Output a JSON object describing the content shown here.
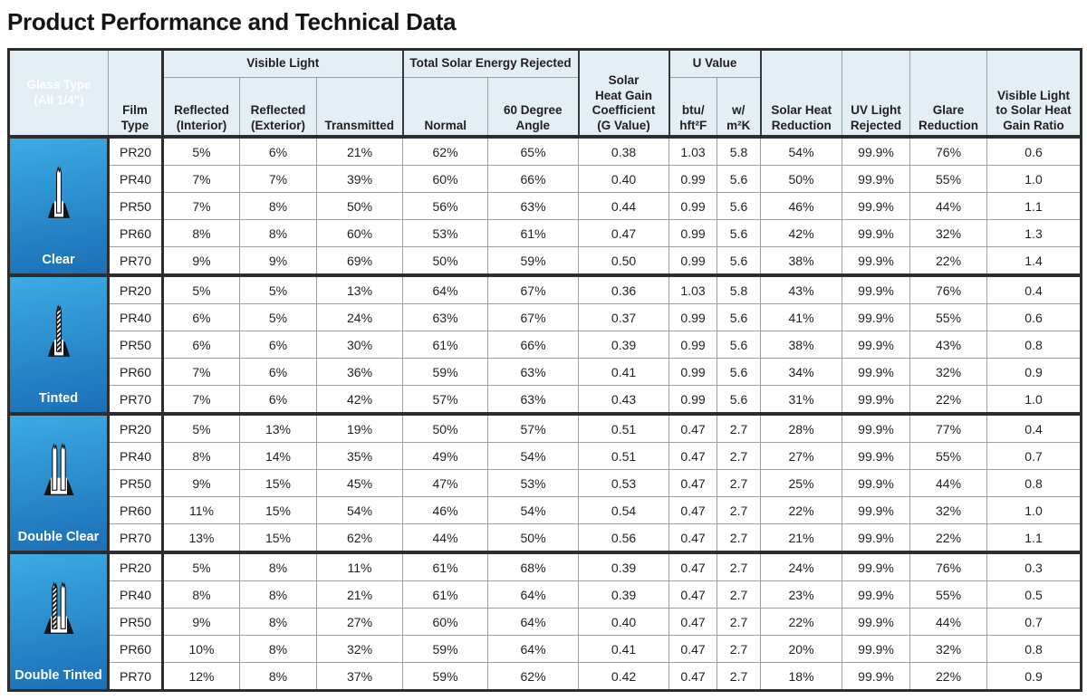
{
  "page_title": "Product Performance and Technical Data",
  "colors": {
    "glass_cell_gradient_top": "#3cabe3",
    "glass_cell_gradient_bottom": "#1b6fb6",
    "header_background": "#e4eef5",
    "thick_border": "#2d2d2d",
    "thin_border": "#9aa0a6",
    "text": "#231f20",
    "glass_cell_text": "#ffffff"
  },
  "table": {
    "header": {
      "glass_type": "Glass Type\n(All 1/4\")",
      "film_type": "Film\nType",
      "visible_light": "Visible Light",
      "reflected_interior": "Reflected\n(Interior)",
      "reflected_exterior": "Reflected\n(Exterior)",
      "transmitted": "Transmitted",
      "total_solar": "Total Solar Energy Rejected",
      "normal": "Normal",
      "deg60": "60 Degree\nAngle",
      "shgc": "Solar\nHeat Gain\nCoefficient\n(G Value)",
      "u_value": "U Value",
      "btu": "btu/\nhft²F",
      "wm2k": "w/\nm²K",
      "solar_heat_reduction": "Solar Heat\nReduction",
      "uv_light_rejected": "UV Light\nRejected",
      "glare_reduction": "Glare\nReduction",
      "ratio": "Visible Light\nto Solar Heat\nGain Ratio"
    },
    "value_columns": [
      "Reflected (Interior)",
      "Reflected (Exterior)",
      "Transmitted",
      "Normal",
      "60 Degree Angle",
      "Solar Heat Gain Coefficient (G Value)",
      "U Value btu/hft²F",
      "U Value w/m²K",
      "Solar Heat Reduction",
      "UV Light Rejected",
      "Glare Reduction",
      "Visible Light to Solar Heat Gain Ratio"
    ],
    "groups": [
      {
        "glass_type": "Clear",
        "icon": "clear-glass-icon",
        "panes": {
          "count": 1,
          "tinted": 0
        },
        "rows": [
          {
            "film": "PR20",
            "values": [
              "5%",
              "6%",
              "21%",
              "62%",
              "65%",
              "0.38",
              "1.03",
              "5.8",
              "54%",
              "99.9%",
              "76%",
              "0.6"
            ]
          },
          {
            "film": "PR40",
            "values": [
              "7%",
              "7%",
              "39%",
              "60%",
              "66%",
              "0.40",
              "0.99",
              "5.6",
              "50%",
              "99.9%",
              "55%",
              "1.0"
            ]
          },
          {
            "film": "PR50",
            "values": [
              "7%",
              "8%",
              "50%",
              "56%",
              "63%",
              "0.44",
              "0.99",
              "5.6",
              "46%",
              "99.9%",
              "44%",
              "1.1"
            ]
          },
          {
            "film": "PR60",
            "values": [
              "8%",
              "8%",
              "60%",
              "53%",
              "61%",
              "0.47",
              "0.99",
              "5.6",
              "42%",
              "99.9%",
              "32%",
              "1.3"
            ]
          },
          {
            "film": "PR70",
            "values": [
              "9%",
              "9%",
              "69%",
              "50%",
              "59%",
              "0.50",
              "0.99",
              "5.6",
              "38%",
              "99.9%",
              "22%",
              "1.4"
            ]
          }
        ]
      },
      {
        "glass_type": "Tinted",
        "icon": "tinted-glass-icon",
        "panes": {
          "count": 1,
          "tinted": 1
        },
        "rows": [
          {
            "film": "PR20",
            "values": [
              "5%",
              "5%",
              "13%",
              "64%",
              "67%",
              "0.36",
              "1.03",
              "5.8",
              "43%",
              "99.9%",
              "76%",
              "0.4"
            ]
          },
          {
            "film": "PR40",
            "values": [
              "6%",
              "5%",
              "24%",
              "63%",
              "67%",
              "0.37",
              "0.99",
              "5.6",
              "41%",
              "99.9%",
              "55%",
              "0.6"
            ]
          },
          {
            "film": "PR50",
            "values": [
              "6%",
              "6%",
              "30%",
              "61%",
              "66%",
              "0.39",
              "0.99",
              "5.6",
              "38%",
              "99.9%",
              "43%",
              "0.8"
            ]
          },
          {
            "film": "PR60",
            "values": [
              "7%",
              "6%",
              "36%",
              "59%",
              "63%",
              "0.41",
              "0.99",
              "5.6",
              "34%",
              "99.9%",
              "32%",
              "0.9"
            ]
          },
          {
            "film": "PR70",
            "values": [
              "7%",
              "6%",
              "42%",
              "57%",
              "63%",
              "0.43",
              "0.99",
              "5.6",
              "31%",
              "99.9%",
              "22%",
              "1.0"
            ]
          }
        ]
      },
      {
        "glass_type": "Double Clear",
        "icon": "double-clear-glass-icon",
        "panes": {
          "count": 2,
          "tinted": 0
        },
        "rows": [
          {
            "film": "PR20",
            "values": [
              "5%",
              "13%",
              "19%",
              "50%",
              "57%",
              "0.51",
              "0.47",
              "2.7",
              "28%",
              "99.9%",
              "77%",
              "0.4"
            ]
          },
          {
            "film": "PR40",
            "values": [
              "8%",
              "14%",
              "35%",
              "49%",
              "54%",
              "0.51",
              "0.47",
              "2.7",
              "27%",
              "99.9%",
              "55%",
              "0.7"
            ]
          },
          {
            "film": "PR50",
            "values": [
              "9%",
              "15%",
              "45%",
              "47%",
              "53%",
              "0.53",
              "0.47",
              "2.7",
              "25%",
              "99.9%",
              "44%",
              "0.8"
            ]
          },
          {
            "film": "PR60",
            "values": [
              "11%",
              "15%",
              "54%",
              "46%",
              "54%",
              "0.54",
              "0.47",
              "2.7",
              "22%",
              "99.9%",
              "32%",
              "1.0"
            ]
          },
          {
            "film": "PR70",
            "values": [
              "13%",
              "15%",
              "62%",
              "44%",
              "50%",
              "0.56",
              "0.47",
              "2.7",
              "21%",
              "99.9%",
              "22%",
              "1.1"
            ]
          }
        ]
      },
      {
        "glass_type": "Double Tinted",
        "icon": "double-tinted-glass-icon",
        "panes": {
          "count": 2,
          "tinted": 1
        },
        "rows": [
          {
            "film": "PR20",
            "values": [
              "5%",
              "8%",
              "11%",
              "61%",
              "68%",
              "0.39",
              "0.47",
              "2.7",
              "24%",
              "99.9%",
              "76%",
              "0.3"
            ]
          },
          {
            "film": "PR40",
            "values": [
              "8%",
              "8%",
              "21%",
              "61%",
              "64%",
              "0.39",
              "0.47",
              "2.7",
              "23%",
              "99.9%",
              "55%",
              "0.5"
            ]
          },
          {
            "film": "PR50",
            "values": [
              "9%",
              "8%",
              "27%",
              "60%",
              "64%",
              "0.40",
              "0.47",
              "2.7",
              "22%",
              "99.9%",
              "44%",
              "0.7"
            ]
          },
          {
            "film": "PR60",
            "values": [
              "10%",
              "8%",
              "32%",
              "59%",
              "64%",
              "0.41",
              "0.47",
              "2.7",
              "20%",
              "99.9%",
              "32%",
              "0.8"
            ]
          },
          {
            "film": "PR70",
            "values": [
              "12%",
              "8%",
              "37%",
              "59%",
              "62%",
              "0.42",
              "0.47",
              "2.7",
              "18%",
              "99.9%",
              "22%",
              "0.9"
            ]
          }
        ]
      }
    ]
  }
}
